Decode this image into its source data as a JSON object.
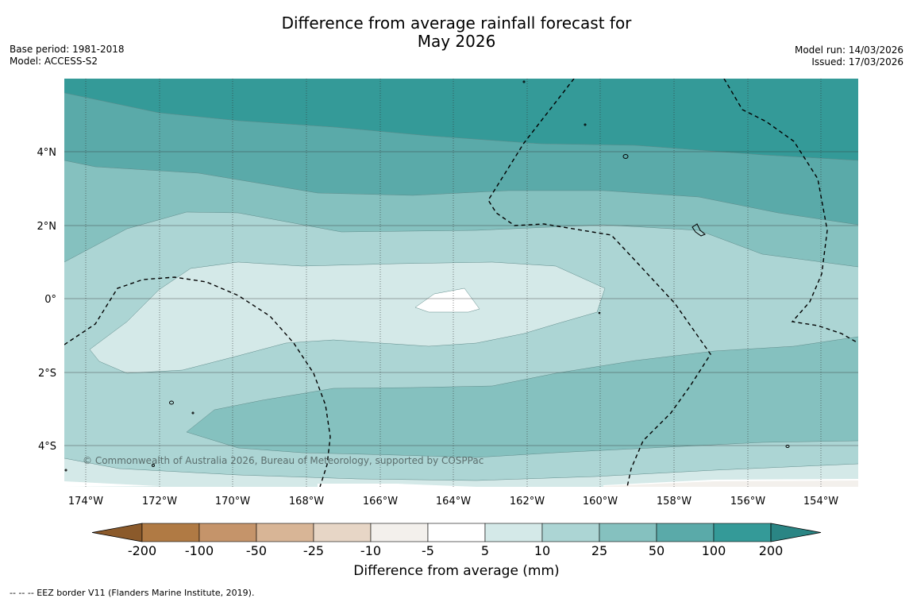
{
  "title_line1": "Difference from average rainfall forecast for",
  "title_line2": "May 2026",
  "base_period": "Base period: 1981-2018",
  "model": "Model: ACCESS-S2",
  "model_run": "Model run: 14/03/2026",
  "issued": "Issued: 17/03/2026",
  "copyright": "© Commonwealth of Australia 2026, Bureau of Meteorology, supported by COSPPac",
  "lat_labels": [
    "4°N",
    "2°N",
    "0°",
    "2°S",
    "4°S"
  ],
  "lon_labels": [
    "174°W",
    "172°W",
    "170°W",
    "168°W",
    "166°W",
    "164°W",
    "162°W",
    "160°W",
    "158°W",
    "156°W",
    "154°W"
  ],
  "colorbar": {
    "title": "Difference from average (mm)",
    "tick_labels": [
      "-200",
      "-100",
      "-50",
      "-25",
      "-10",
      "-5",
      "5",
      "10",
      "25",
      "50",
      "100",
      "200"
    ],
    "colors": [
      "#8b5a2b",
      "#b07a44",
      "#c5946a",
      "#d8b596",
      "#e7d6c6",
      "#f3f0ec",
      "#ffffff",
      "#d4e9e8",
      "#acd5d4",
      "#85c1bf",
      "#5aaaa9",
      "#349a98",
      "#2a8584"
    ]
  },
  "footnote": "--  --  -- EEZ border V11 (Flanders Marine Institute, 2019)."
}
